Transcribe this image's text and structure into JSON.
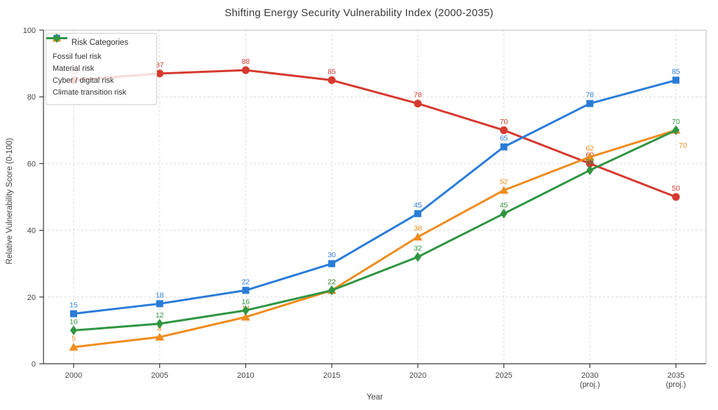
{
  "chart_data": {
    "type": "line",
    "title": "Shifting Energy Security Vulnerability Index (2000-2035)",
    "xlabel": "Year",
    "ylabel": "Relative Vulnerability Score (0-100)",
    "categories": [
      "2000",
      "2005",
      "2010",
      "2015",
      "2020",
      "2025",
      "2030 (proj.)",
      "2035 (proj.)"
    ],
    "x_tick_labels": [
      [
        "2000"
      ],
      [
        "2005"
      ],
      [
        "2010"
      ],
      [
        "2015"
      ],
      [
        "2020"
      ],
      [
        "2025"
      ],
      [
        "2030",
        "(proj.)"
      ],
      [
        "2035",
        "(proj.)"
      ]
    ],
    "ylim": [
      0,
      100
    ],
    "y_ticks": [
      0,
      20,
      40,
      60,
      80,
      100
    ],
    "grid": "dashed-both-axes",
    "legend": {
      "title": "Risk Categories",
      "position": "top-left"
    },
    "series": [
      {
        "name": "Fossil fuel risk",
        "color": "#d6392e",
        "marker": "circle",
        "values": [
          85,
          87,
          88,
          85,
          78,
          70,
          60,
          50
        ]
      },
      {
        "name": "Material risk",
        "color": "#2a7cd9",
        "marker": "square",
        "values": [
          15,
          18,
          22,
          30,
          45,
          65,
          78,
          85
        ]
      },
      {
        "name": "Cyber / digital risk",
        "color": "#ef8c1d",
        "marker": "triangle",
        "values": [
          5,
          8,
          14,
          22,
          38,
          52,
          62,
          70
        ],
        "label_offsets": {
          "7": [
            10,
            25
          ]
        }
      },
      {
        "name": "Climate transition risk",
        "color": "#2f9541",
        "marker": "diamond",
        "values": [
          10,
          12,
          16,
          22,
          32,
          45,
          58,
          70
        ]
      }
    ]
  }
}
